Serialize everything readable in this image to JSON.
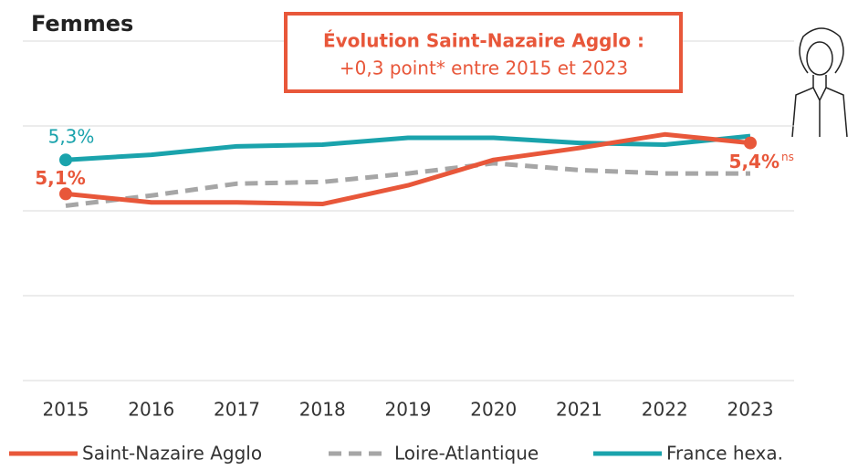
{
  "chart_data": {
    "type": "line",
    "title": "Femmes",
    "annotation": {
      "title": "Évolution Saint-Nazaire Agglo :",
      "text": "+0,3 point* entre 2015 et 2023",
      "color": "#e8573a"
    },
    "categories": [
      "2015",
      "2016",
      "2017",
      "2018",
      "2019",
      "2020",
      "2021",
      "2022",
      "2023"
    ],
    "ylim": [
      4,
      6
    ],
    "yticks": [
      4,
      4.5,
      5,
      5.5,
      6
    ],
    "grid": true,
    "ytick_labels": false,
    "series": [
      {
        "name": "Saint-Nazaire Agglo",
        "color": "#e8573a",
        "dashed": false,
        "values": [
          5.1,
          5.05,
          5.05,
          5.04,
          5.15,
          5.3,
          5.37,
          5.45,
          5.4
        ],
        "value_labels": [
          "5,1%",
          null,
          null,
          null,
          null,
          null,
          null,
          null,
          "5,4%"
        ],
        "note": "ns"
      },
      {
        "name": "Loire-Atlantique",
        "color": "#a6a6a6",
        "dashed": true,
        "values": [
          5.03,
          5.09,
          5.16,
          5.17,
          5.22,
          5.28,
          5.24,
          5.22,
          5.22
        ]
      },
      {
        "name": "France hexa.",
        "color": "#1aa3ac",
        "dashed": false,
        "values": [
          5.3,
          5.33,
          5.38,
          5.39,
          5.43,
          5.43,
          5.4,
          5.39,
          5.44
        ],
        "value_labels": [
          "5,3%",
          null,
          null,
          null,
          null,
          null,
          null,
          null,
          null
        ]
      }
    ]
  }
}
